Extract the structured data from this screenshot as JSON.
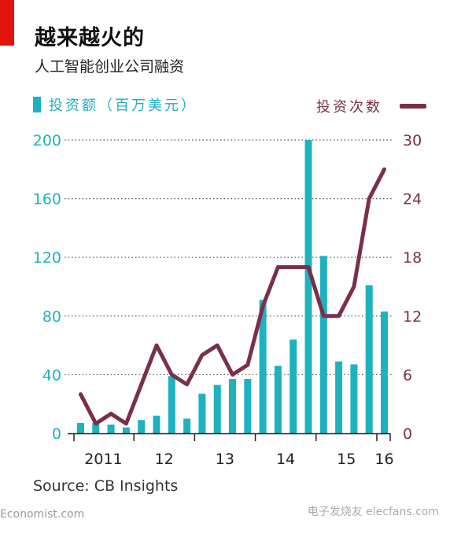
{
  "header": {
    "title": "越来越火的",
    "subtitle": "人工智能创业公司融资"
  },
  "legend": {
    "left_label": "投资额（百万美元）",
    "right_label": "投资次数"
  },
  "footer": {
    "source": "Source: CB Insights",
    "brand": "Economist.com",
    "watermark": "电子发烧友 elecfans.com"
  },
  "colors": {
    "bar": "#1eb1c0",
    "line": "#7a2f4b",
    "accent": "#e3120b"
  },
  "chart_data": {
    "type": "bar",
    "bar_series": {
      "name": "投资额（百万美元）",
      "axis": "left",
      "values": [
        7,
        7,
        6,
        4,
        9,
        12,
        39,
        10,
        27,
        33,
        37,
        37,
        91,
        46,
        64,
        200,
        121,
        49,
        47,
        101,
        83
      ]
    },
    "line_series": {
      "name": "投资次数",
      "axis": "right",
      "values": [
        4,
        1,
        2,
        1,
        5,
        9,
        6,
        5,
        8,
        9,
        6,
        7,
        13,
        17,
        17,
        17,
        12,
        12,
        15,
        24,
        27
      ]
    },
    "left_axis": {
      "ylim": [
        0,
        200
      ],
      "ticks": [
        "0",
        "40",
        "80",
        "120",
        "160",
        "200"
      ]
    },
    "right_axis": {
      "ylim": [
        0,
        30
      ],
      "ticks": [
        "0",
        "6",
        "12",
        "18",
        "24",
        "30"
      ]
    },
    "x_tick_labels": [
      {
        "label": "2011",
        "index": 1.5
      },
      {
        "label": "12",
        "index": 5.5
      },
      {
        "label": "13",
        "index": 9.5
      },
      {
        "label": "14",
        "index": 13.5
      },
      {
        "label": "15",
        "index": 17.5
      },
      {
        "label": "16",
        "index": 20
      }
    ],
    "grid": "horizontal dotted"
  }
}
